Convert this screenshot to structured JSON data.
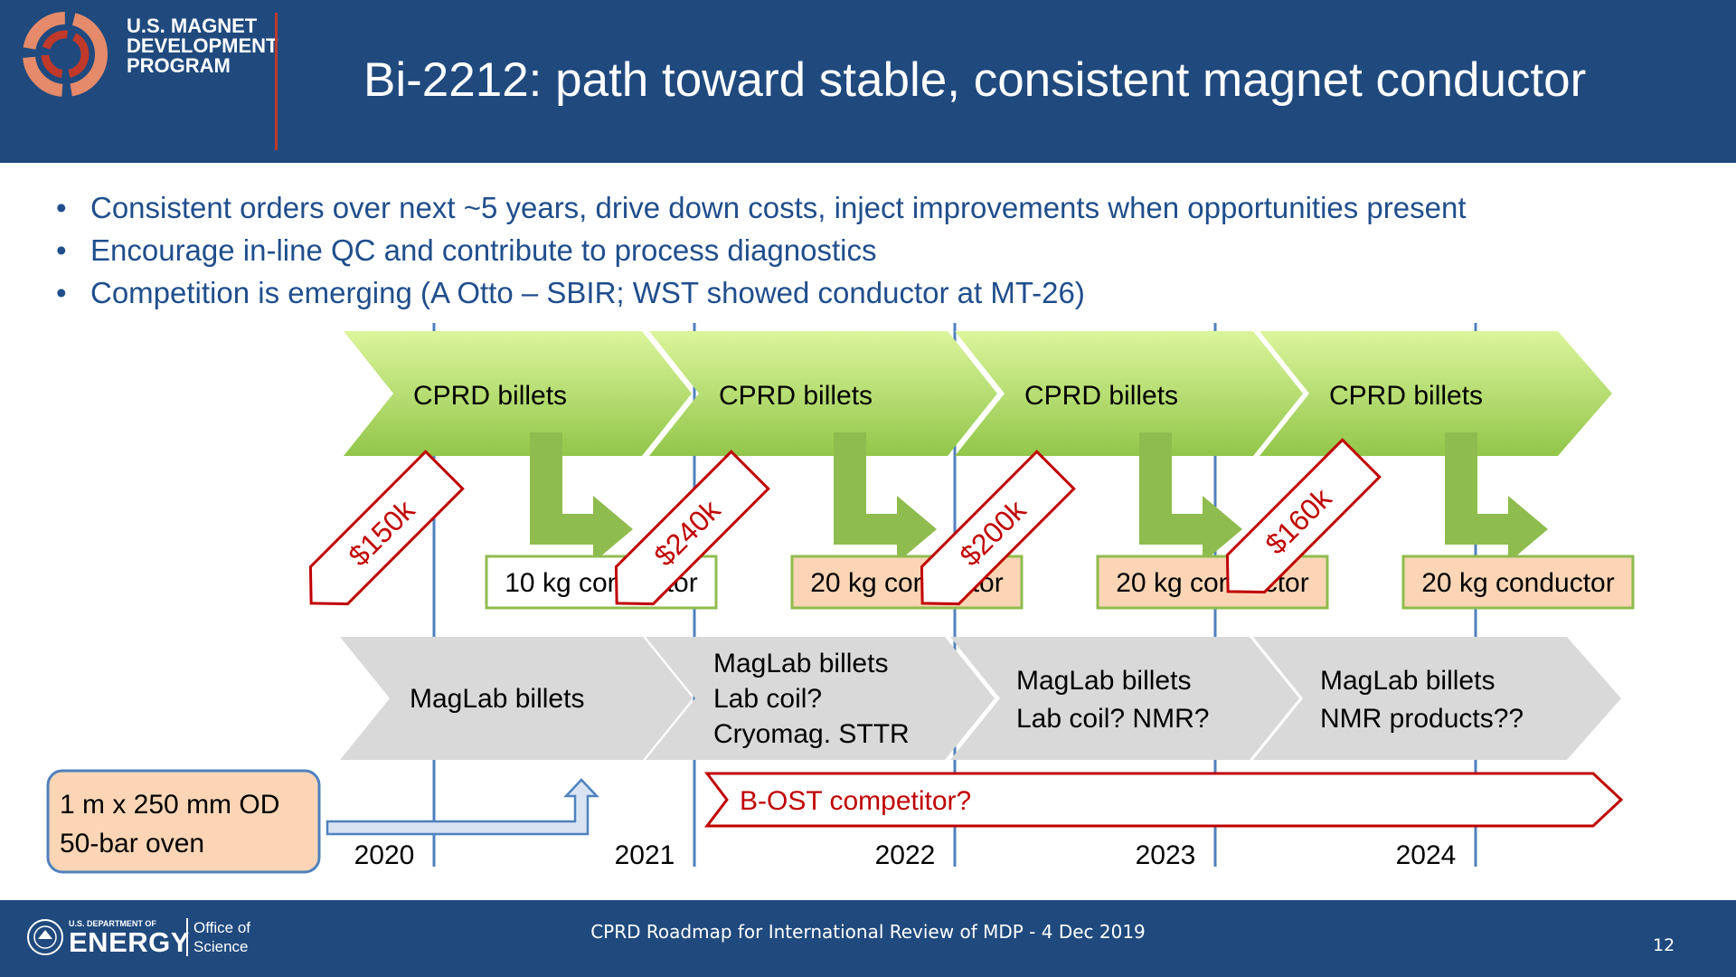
{
  "header": {
    "logo_lines": [
      "U.S. MAGNET",
      "DEVELOPMENT",
      "PROGRAM"
    ],
    "title": "Bi-2212: path toward stable, consistent magnet conductor",
    "colors": {
      "background": "#204a7e",
      "logo_ring_dark": "#c0392b",
      "logo_ring_light": "#e58a6a"
    }
  },
  "bullets": [
    "Consistent orders over next ~5 years, drive down costs, inject improvements when opportunities present",
    "Encourage in-line QC and contribute to process diagnostics",
    "Competition is emerging (A Otto – SBIR; WST showed conductor at MT-26)"
  ],
  "timeline": {
    "years": [
      "2020",
      "2021",
      "2022",
      "2023",
      "2024"
    ],
    "cprd": [
      {
        "label": "CPRD billets",
        "cost": "$150k",
        "conductor": "10 kg conductor",
        "conductor_fill": "#ffffff"
      },
      {
        "label": "CPRD billets",
        "cost": "$240k",
        "conductor": "20 kg conductor",
        "conductor_fill": "#fbd5b5"
      },
      {
        "label": "CPRD billets",
        "cost": "$200k",
        "conductor": "20 kg conductor",
        "conductor_fill": "#fbd5b5"
      },
      {
        "label": "CPRD billets",
        "cost": "$160k",
        "conductor": "20 kg conductor",
        "conductor_fill": "#fbd5b5"
      }
    ],
    "maglab": [
      {
        "lines": [
          "MagLab billets"
        ]
      },
      {
        "lines": [
          "MagLab billets",
          "Lab coil?",
          "Cryomag. STTR"
        ]
      },
      {
        "lines": [
          "MagLab billets",
          "Lab coil? NMR?"
        ]
      },
      {
        "lines": [
          "MagLab billets",
          "NMR products??"
        ]
      }
    ],
    "oven": {
      "lines": [
        "1 m x 250 mm OD",
        "50-bar oven"
      ]
    },
    "competitor": "B-OST competitor?",
    "colors": {
      "cprd_top": "#dcf59c",
      "cprd_bottom": "#92c64a",
      "down_arrow": "#8fbc4e",
      "maglab": "#d9d9d9",
      "conductor_border": "#8fbc4e",
      "cost_tag": "#c00000",
      "oven_fill": "#fbd5b5",
      "oven_border": "#4f81bd",
      "competitor": "#c00000",
      "year_line": "#4f81bd"
    }
  },
  "footer": {
    "doe_small": "U.S. DEPARTMENT OF",
    "doe_big": "ENERGY",
    "office_lines": [
      "Office of",
      "Science"
    ],
    "caption": "CPRD Roadmap for International Review of MDP - 4 Dec 2019",
    "page": "12"
  }
}
